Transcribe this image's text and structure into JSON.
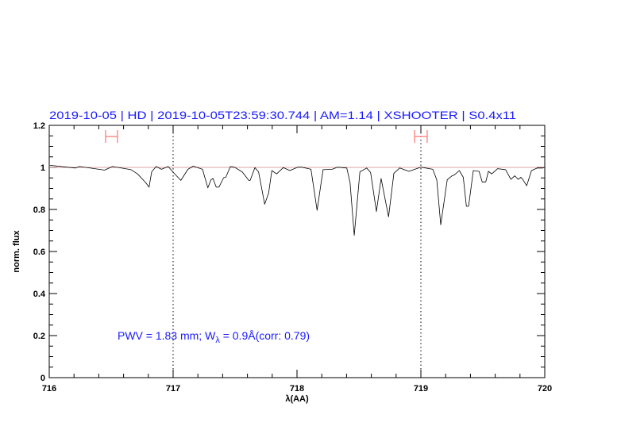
{
  "chart_data": {
    "type": "line",
    "title": "2019-10-05  |  HD  |  2019-10-05T23:59:30.744  |  AM=1.14  |  XSHOOTER  |  S0.4x11",
    "xlabel": "λ(AA)",
    "ylabel": "norm. flux",
    "xlim": [
      716,
      720
    ],
    "ylim": [
      0,
      1.2
    ],
    "xticks": [
      "716",
      "717",
      "718",
      "719",
      "720"
    ],
    "yticks": [
      "0",
      "0.2",
      "0.4",
      "0.6",
      "0.8",
      "1",
      "1.2"
    ],
    "grid": false,
    "annotation": {
      "prefix": "PWV = 1.83 mm; W",
      "sub": "λ",
      "suffix": " = 0.9Å(corr: 0.79)"
    },
    "reference_line_y": 1.0,
    "vertical_dotted_lines_x": [
      717,
      719
    ],
    "error_bars": [
      {
        "x_from": 716.455,
        "x_to": 716.551,
        "y": 1.147
      },
      {
        "x_from": 718.949,
        "x_to": 719.051,
        "y": 1.147
      }
    ],
    "colors": {
      "spectrum": "#000000",
      "reference": "#d08080",
      "error_bars": "#ff7070",
      "title": "#1a1aff"
    },
    "series": [
      {
        "x": [
          716.006,
          716.212,
          716.244,
          716.447,
          716.511,
          716.66,
          716.713,
          716.778,
          716.806,
          716.827,
          716.863,
          716.906,
          716.96,
          717.002,
          717.062,
          717.12,
          717.162,
          717.237,
          717.28,
          717.306,
          717.322,
          717.348,
          717.37,
          717.408,
          717.425,
          717.462,
          717.494,
          717.558,
          717.611,
          717.622,
          717.66,
          717.69,
          717.739,
          717.771,
          717.797,
          717.835,
          717.889,
          717.942,
          718.006,
          718.038,
          718.092,
          718.113,
          718.162,
          718.21,
          718.284,
          718.327,
          718.402,
          718.428,
          718.462,
          718.508,
          718.562,
          718.594,
          718.641,
          718.679,
          718.739,
          718.782,
          718.829,
          718.904,
          718.999,
          719.096,
          719.128,
          719.16,
          719.213,
          719.252,
          719.267,
          719.31,
          719.342,
          719.367,
          719.385,
          719.423,
          719.47,
          719.495,
          719.524,
          719.545,
          719.572,
          719.62,
          719.684,
          719.726,
          719.758,
          719.786,
          719.808,
          719.822,
          719.854,
          719.893,
          719.94,
          719.983,
          720.0
        ],
        "y": [
          1.01,
          0.997,
          1.004,
          0.987,
          1.004,
          0.989,
          0.969,
          0.928,
          0.906,
          0.979,
          1.004,
          0.991,
          1.004,
          0.976,
          0.938,
          0.991,
          1.006,
          0.991,
          0.903,
          0.941,
          0.947,
          0.906,
          0.906,
          0.951,
          0.953,
          1.004,
          1.001,
          0.979,
          0.938,
          0.938,
          0.999,
          0.979,
          0.825,
          0.878,
          0.985,
          0.969,
          0.999,
          0.985,
          1.001,
          1.001,
          0.994,
          0.991,
          0.796,
          0.989,
          0.991,
          1.001,
          0.997,
          0.928,
          0.677,
          0.979,
          0.997,
          0.976,
          0.79,
          0.947,
          0.765,
          0.972,
          0.997,
          0.981,
          1.001,
          0.991,
          0.941,
          0.727,
          0.941,
          0.96,
          0.963,
          0.985,
          0.953,
          0.815,
          0.815,
          0.985,
          0.981,
          0.931,
          0.931,
          0.981,
          0.969,
          0.994,
          0.989,
          0.943,
          0.96,
          0.943,
          0.953,
          0.943,
          0.913,
          0.985,
          0.997,
          0.997,
          1.0
        ]
      }
    ]
  }
}
